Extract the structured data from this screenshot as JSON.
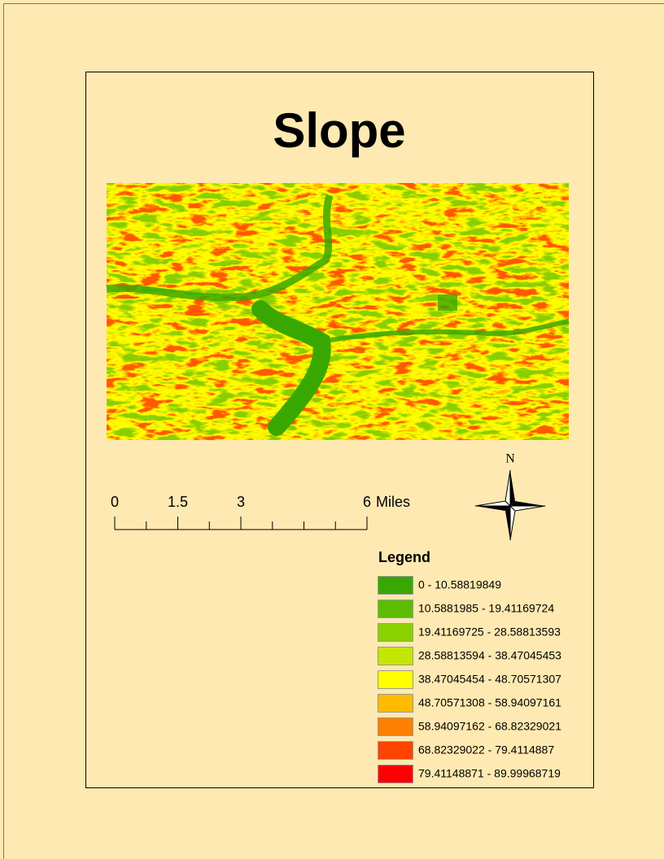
{
  "title": "Slope",
  "scale_bar": {
    "ticks": [
      0,
      1.5,
      3,
      6
    ],
    "unit": "Miles"
  },
  "north_arrow": {
    "label": "N"
  },
  "legend": {
    "title": "Legend",
    "items": [
      {
        "label": "0 - 10.58819849",
        "color": "#38a800"
      },
      {
        "label": "10.5881985 - 19.41169724",
        "color": "#5cbd00"
      },
      {
        "label": "19.41169725 - 28.58813593",
        "color": "#8bd100"
      },
      {
        "label": "28.58813594 - 38.47045453",
        "color": "#c4e600"
      },
      {
        "label": "38.47045454 - 48.70571307",
        "color": "#ffff00"
      },
      {
        "label": "48.70571308 - 58.94097161",
        "color": "#ffbb00"
      },
      {
        "label": "58.94097162 - 68.82329021",
        "color": "#ff8000"
      },
      {
        "label": "68.82329022 - 79.4114887",
        "color": "#ff4400"
      },
      {
        "label": "79.41148871 - 89.99968719",
        "color": "#ff0000"
      }
    ]
  }
}
